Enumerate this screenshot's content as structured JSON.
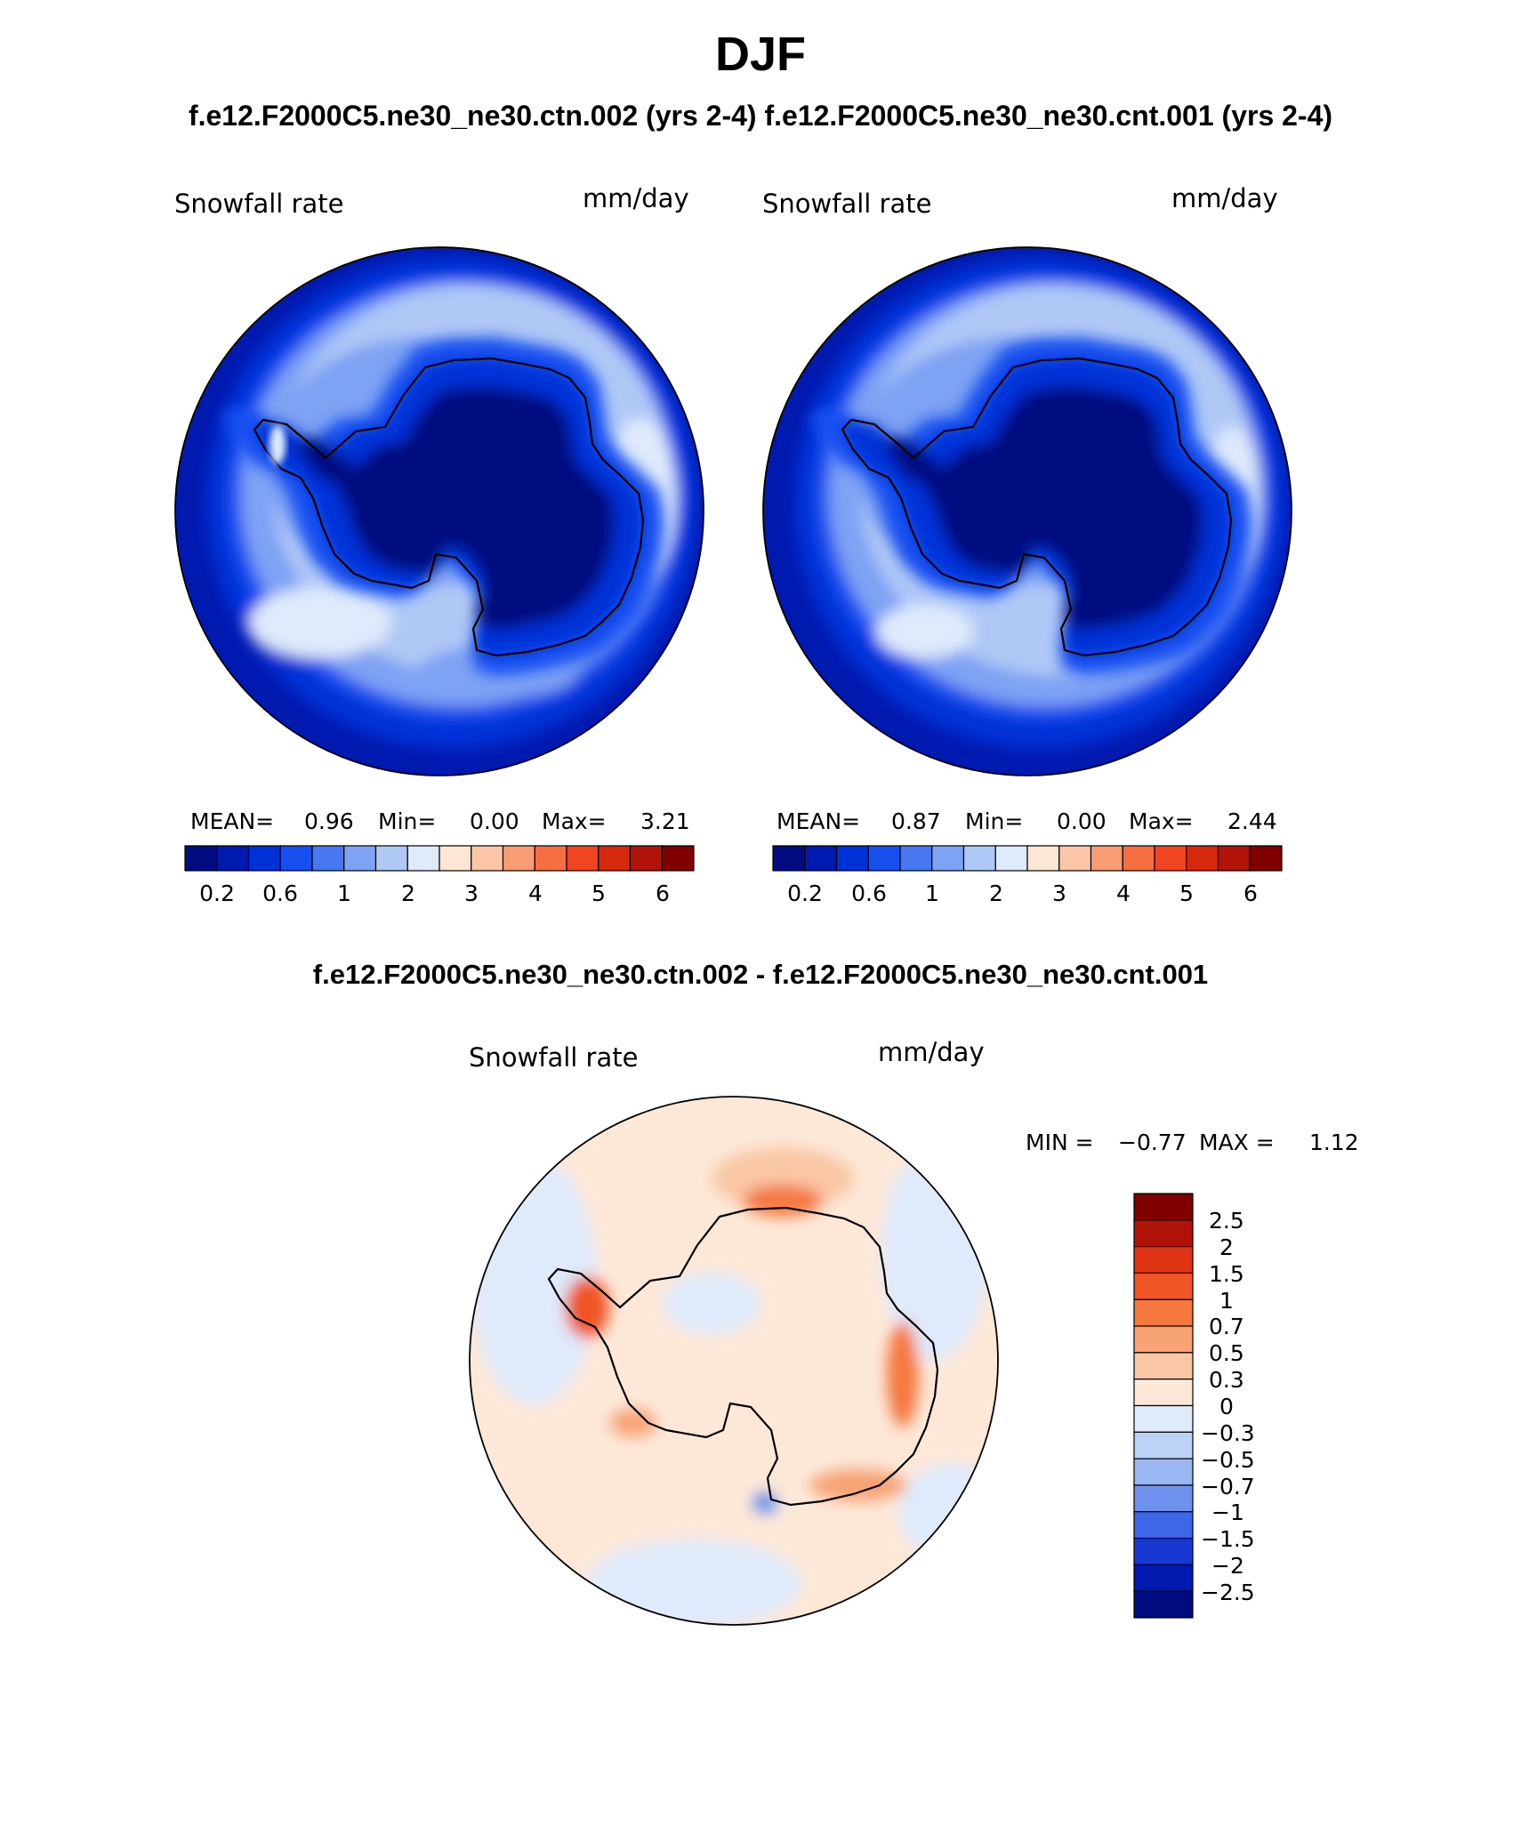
{
  "title": "DJF",
  "runs_title": "f.e12.F2000C5.ne30_ne30.ctn.002 (yrs 2-4) f.e12.F2000C5.ne30_ne30.cnt.001 (yrs 2-4)",
  "diff_title": "f.e12.F2000C5.ne30_ne30.ctn.002 - f.e12.F2000C5.ne30_ne30.cnt.001",
  "panels": [
    {
      "variable": "Snowfall rate",
      "units": "mm/day",
      "mean_label": "MEAN=",
      "mean": "0.96",
      "min_label": "Min=",
      "min": "0.00",
      "max_label": "Max=",
      "max": "3.21"
    },
    {
      "variable": "Snowfall rate",
      "units": "mm/day",
      "mean_label": "MEAN=",
      "mean": "0.87",
      "min_label": "Min=",
      "min": "0.00",
      "max_label": "Max=",
      "max": "2.44"
    }
  ],
  "diff_panel": {
    "variable": "Snowfall rate",
    "units": "mm/day",
    "min_label": "MIN =",
    "min": "−0.77",
    "max_label": "MAX =",
    "max": "1.12"
  },
  "colorbar_levels": [
    "0.2",
    "0.6",
    "1",
    "2",
    "3",
    "4",
    "5",
    "6"
  ],
  "diff_levels": [
    "2.5",
    "2",
    "1.5",
    "1",
    "0.7",
    "0.5",
    "0.3",
    "0",
    "−0.3",
    "−0.5",
    "−0.7",
    "−1",
    "−1.5",
    "−2",
    "−2.5"
  ],
  "colors": {
    "abs_scale": [
      "#000c80",
      "#001ab0",
      "#0030d8",
      "#1850f0",
      "#4878f0",
      "#7ea2f4",
      "#b0c8f6",
      "#dfeafb",
      "#fde6d4",
      "#fbc6a8",
      "#f89c73",
      "#f56f42",
      "#f0451e",
      "#d6280a",
      "#b01408",
      "#800000"
    ],
    "diff_scale": [
      "#800000",
      "#b01408",
      "#de3414",
      "#f05528",
      "#f5783f",
      "#f7a375",
      "#f9c7a5",
      "#fde8d8",
      "#dfeafb",
      "#bcd3f7",
      "#9ab7f3",
      "#6e91ee",
      "#3e66e8",
      "#1637d0",
      "#001ab0",
      "#000c80"
    ],
    "coast": "#000000"
  },
  "chart_data": {
    "type": "heatmap",
    "projection": "south polar stereographic",
    "maps": [
      {
        "name": "f.e12.F2000C5.ne30_ne30.ctn.002",
        "variable": "Snowfall rate",
        "units": "mm/day",
        "season": "DJF",
        "mean": 0.96,
        "min": 0.0,
        "max": 3.21
      },
      {
        "name": "f.e12.F2000C5.ne30_ne30.cnt.001",
        "variable": "Snowfall rate",
        "units": "mm/day",
        "season": "DJF",
        "mean": 0.87,
        "min": 0.0,
        "max": 2.44
      },
      {
        "name": "difference",
        "variable": "Snowfall rate",
        "units": "mm/day",
        "season": "DJF",
        "min": -0.77,
        "max": 1.12
      }
    ],
    "contour_levels_abs": [
      0.2,
      0.6,
      1,
      2,
      3,
      4,
      5,
      6
    ],
    "contour_levels_diff": [
      -2.5,
      -2,
      -1.5,
      -1,
      -0.7,
      -0.5,
      -0.3,
      0,
      0.3,
      0.5,
      0.7,
      1,
      1.5,
      2,
      2.5
    ]
  }
}
